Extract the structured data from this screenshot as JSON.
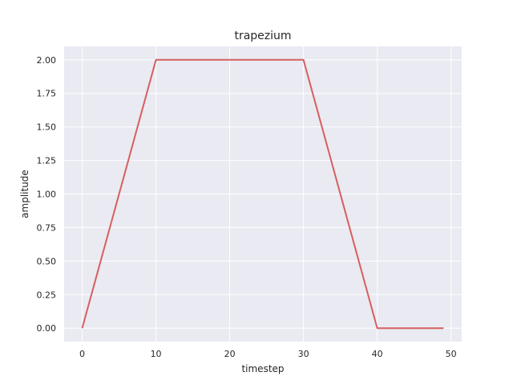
{
  "chart_data": {
    "type": "line",
    "title": "trapezium",
    "xlabel": "timestep",
    "ylabel": "amplitude",
    "xlim": [
      -2.45,
      51.45
    ],
    "ylim": [
      -0.1,
      2.1
    ],
    "xticks": [
      0,
      10,
      20,
      30,
      40,
      50
    ],
    "xtick_labels": [
      "0",
      "10",
      "20",
      "30",
      "40",
      "50"
    ],
    "yticks": [
      0.0,
      0.25,
      0.5,
      0.75,
      1.0,
      1.25,
      1.5,
      1.75,
      2.0
    ],
    "ytick_labels": [
      "0.00",
      "0.25",
      "0.50",
      "0.75",
      "1.00",
      "1.25",
      "1.50",
      "1.75",
      "2.00"
    ],
    "grid": true,
    "background": "#eaeaf2",
    "series": [
      {
        "color": "#d65f5f",
        "x": [
          0,
          10,
          30,
          40,
          49
        ],
        "y": [
          0,
          2,
          2,
          0,
          0
        ]
      }
    ]
  }
}
